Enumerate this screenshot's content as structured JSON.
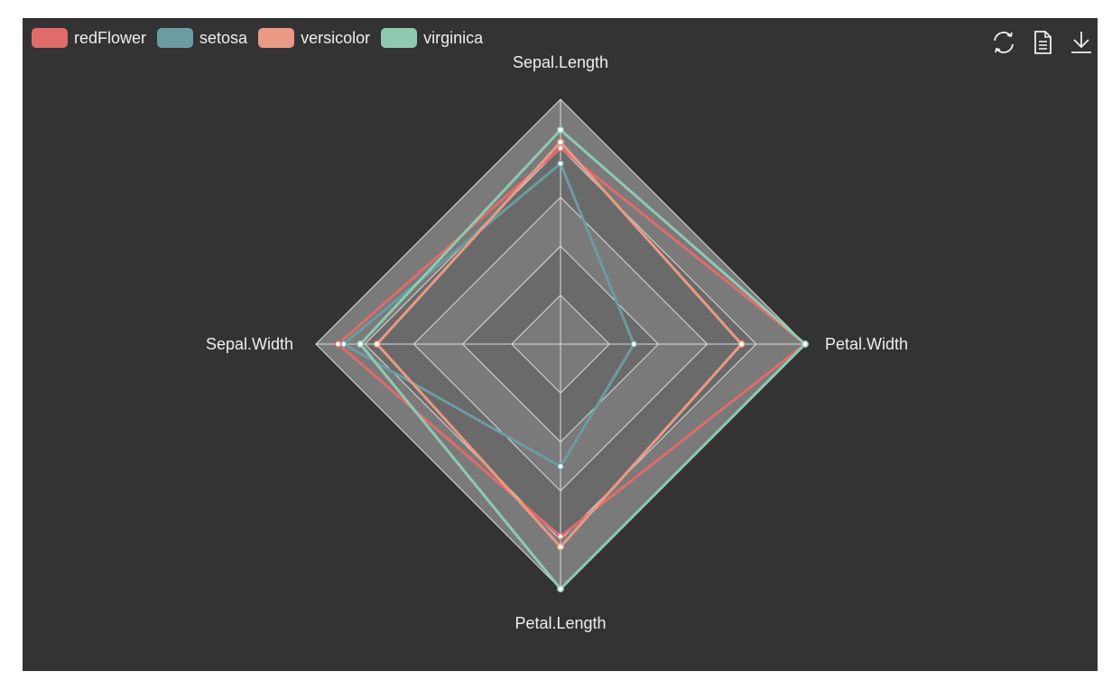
{
  "toolbox": {
    "restore_icon": "refresh-icon",
    "dataview_icon": "document-icon",
    "save_icon": "download-icon"
  },
  "chart_data": {
    "type": "radar",
    "indicators": [
      {
        "name": "Sepal.Length",
        "max": 8
      },
      {
        "name": "Petal.Width",
        "max": 2.5
      },
      {
        "name": "Petal.Length",
        "max": 7
      },
      {
        "name": "Sepal.Width",
        "max": 4.4
      }
    ],
    "series": [
      {
        "name": "redFlower",
        "color": "#e06b6b",
        "values": [
          6.4,
          2.5,
          5.5,
          4.0
        ]
      },
      {
        "name": "setosa",
        "color": "#6d9ba3",
        "values": [
          5.9,
          0.75,
          3.5,
          3.9
        ]
      },
      {
        "name": "versicolor",
        "color": "#ea9a84",
        "values": [
          6.6,
          1.85,
          5.8,
          3.3
        ]
      },
      {
        "name": "virginica",
        "color": "#8fcab0",
        "values": [
          7.0,
          2.5,
          7.0,
          3.6
        ]
      }
    ],
    "split_number": 5,
    "split_area_colors": [
      "#7a7a7a",
      "#6a6a6a"
    ],
    "split_line_color": "#dddddd",
    "background": "#333333",
    "legend_position": "top-left"
  }
}
